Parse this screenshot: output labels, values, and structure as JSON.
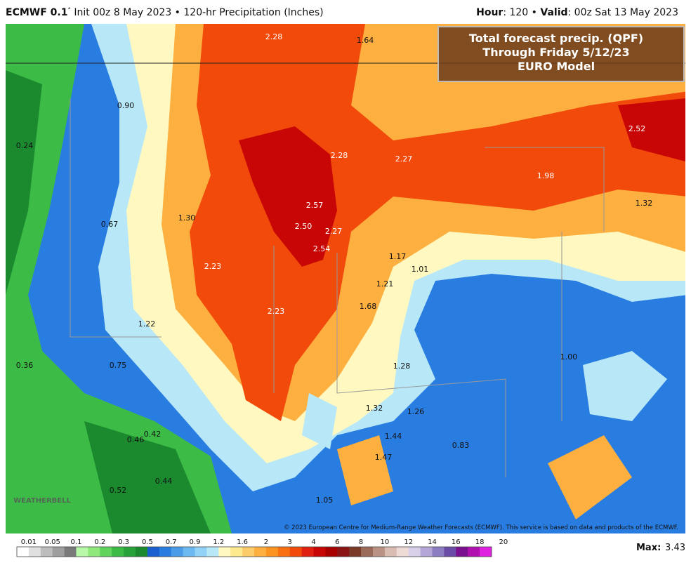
{
  "header": {
    "left": [
      {
        "text": "ECMWF 0.1",
        "bold": true
      },
      {
        "text": "°",
        "bold": false,
        "sup": true
      },
      {
        "text": " Init 00z 8 May 2023 • 120-hr Precipitation (Inches)",
        "bold": false
      }
    ],
    "right": [
      {
        "text": "Hour",
        "bold": true
      },
      {
        "text": ": 120 • ",
        "bold": false
      },
      {
        "text": "Valid",
        "bold": true
      },
      {
        "text": ": 00z Sat 13 May 2023",
        "bold": false
      }
    ]
  },
  "title_box": {
    "lines": [
      "Total forecast precip. (QPF)",
      "Through Friday 5/12/23",
      "EURO Model"
    ]
  },
  "map_labels": [
    "2.28",
    "1.64",
    "0.90",
    "0.24",
    "2.28",
    "2.27",
    "2.52",
    "1.98",
    "1.32",
    "1.30",
    "0.67",
    "2.57",
    "2.50",
    "2.27",
    "2.54",
    "1.17",
    "1.01",
    "2.23",
    "1.21",
    "1.68",
    "2.23",
    "1.22",
    "1.00",
    "0.36",
    "0.75",
    "1.28",
    "1.32",
    "1.26",
    "1.44",
    "0.46",
    "0.42",
    "0.83",
    "1.47",
    "0.44",
    "0.52",
    "1.05"
  ],
  "credit": "© 2023 European Centre for Medium-Range Weather Forecasts (ECMWF). This service is based on data and products of the ECMWF.",
  "watermark": "WEATHERBELL",
  "colorbar": {
    "ticks": [
      "0.01",
      "0.05",
      "0.1",
      "0.2",
      "0.3",
      "0.5",
      "0.7",
      "0.9",
      "1.2",
      "1.6",
      "2",
      "3",
      "4",
      "6",
      "8",
      "10",
      "12",
      "14",
      "16",
      "18",
      "20"
    ],
    "colors": [
      "#ffffff",
      "#e0e0e0",
      "#bdbdbd",
      "#9e9e9e",
      "#7a7a7a",
      "#b9f7a9",
      "#8ee87c",
      "#5fd35c",
      "#3cbb46",
      "#27a13a",
      "#1b8a2e",
      "#1a5fd0",
      "#2a7de0",
      "#4a9be8",
      "#6cb8f0",
      "#92d2f6",
      "#b8e8f8",
      "#fff8c0",
      "#fde98e",
      "#fdcc6a",
      "#fdb040",
      "#fb9420",
      "#f87010",
      "#f24a0a",
      "#e02010",
      "#c80606",
      "#a80000",
      "#8a1414",
      "#7a3a2a",
      "#9a6a5a",
      "#b99284",
      "#d8bcb2",
      "#eedbd6",
      "#d8cfe8",
      "#b4a6d6",
      "#8c7cc0",
      "#6a4ca6",
      "#7a1090",
      "#b010b0",
      "#e020e0"
    ]
  },
  "max": {
    "label": "Max:",
    "value": "3.43"
  }
}
